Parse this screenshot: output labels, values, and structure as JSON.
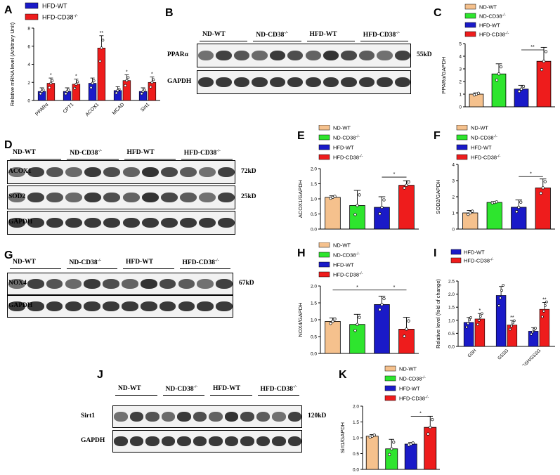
{
  "panels": {
    "A": {
      "label": "A"
    },
    "B": {
      "label": "B"
    },
    "C": {
      "label": "C"
    },
    "D": {
      "label": "D"
    },
    "E": {
      "label": "E"
    },
    "F": {
      "label": "F"
    },
    "G": {
      "label": "G"
    },
    "H": {
      "label": "H"
    },
    "I": {
      "label": "I"
    },
    "J": {
      "label": "J"
    },
    "K": {
      "label": "K"
    }
  },
  "groups4": [
    "ND-WT",
    "ND-CD38",
    "HFD-WT",
    "HFD-CD38"
  ],
  "groups2": [
    "HFD-WT",
    "HFD-CD38"
  ],
  "sup": "-/-",
  "colors": {
    "nd_wt": "#f5c18d",
    "nd_cd38": "#2ee52e",
    "hfd_wt": "#1a1ac8",
    "hfd_cd38": "#ee1c1c",
    "grid": "#000000"
  },
  "blots": {
    "B": {
      "lanes": [
        "ND-WT",
        "ND-CD38",
        "HFD-WT",
        "HFD-CD38"
      ],
      "rows": [
        {
          "name": "PPARα",
          "kd": "55kD"
        },
        {
          "name": "GAPDH",
          "kd": ""
        }
      ]
    },
    "D": {
      "lanes": [
        "ND-WT",
        "ND-CD38",
        "HFD-WT",
        "HFD-CD38"
      ],
      "rows": [
        {
          "name": "ACOX1",
          "kd": "72kD"
        },
        {
          "name": "SOD2",
          "kd": "25kD"
        },
        {
          "name": "GAPDH",
          "kd": ""
        }
      ]
    },
    "G": {
      "lanes": [
        "ND-WT",
        "ND-CD38",
        "HFD-WT",
        "HFD-CD38"
      ],
      "rows": [
        {
          "name": "NOX4",
          "kd": "67kD"
        },
        {
          "name": "GAPDH",
          "kd": ""
        }
      ]
    },
    "J": {
      "lanes": [
        "ND-WT",
        "ND-CD38",
        "HFD-WT",
        "HFD-CD38"
      ],
      "rows": [
        {
          "name": "Sirt1",
          "kd": "120kD"
        },
        {
          "name": "GAPDH",
          "kd": ""
        }
      ]
    }
  },
  "chart_data": [
    {
      "id": "A",
      "type": "bar",
      "ylabel": "Relative mRNA level (Arbitrary Unit)",
      "ylim": [
        0,
        8
      ],
      "yticks": [
        0,
        2,
        4,
        6,
        8
      ],
      "categories": [
        "PPARα",
        "CPT1",
        "ACOX1",
        "MCAD",
        "Sirt1"
      ],
      "series": [
        {
          "name": "HFD-WT",
          "values": [
            1.0,
            1.0,
            1.9,
            1.1,
            1.0
          ]
        },
        {
          "name": "HFD-CD38",
          "values": [
            1.9,
            1.8,
            5.8,
            2.2,
            2.0
          ]
        }
      ],
      "annotations": [
        "*",
        "*",
        "**",
        "*",
        "*"
      ]
    },
    {
      "id": "C",
      "type": "bar",
      "ylabel": "PPARα/GAPDH",
      "ylim": [
        0,
        5
      ],
      "yticks": [
        0,
        1,
        2,
        3,
        4,
        5
      ],
      "categories": [
        "ND-WT",
        "ND-CD38",
        "HFD-WT",
        "HFD-CD38"
      ],
      "values": [
        1.0,
        2.6,
        1.4,
        3.6
      ],
      "errors": [
        0.1,
        0.8,
        0.3,
        1.1
      ],
      "annotations": [
        "**"
      ]
    },
    {
      "id": "E",
      "type": "bar",
      "ylabel": "ACOX1/GAPDH",
      "ylim": [
        0,
        2.0
      ],
      "yticks": [
        0.0,
        0.5,
        1.0,
        1.5,
        2.0
      ],
      "categories": [
        "ND-WT",
        "ND-CD38",
        "HFD-WT",
        "HFD-CD38"
      ],
      "values": [
        1.05,
        0.78,
        0.72,
        1.45
      ],
      "errors": [
        0.05,
        0.5,
        0.35,
        0.15
      ],
      "annotations": [
        "*"
      ]
    },
    {
      "id": "F",
      "type": "bar",
      "ylabel": "SOD2/GAPDH",
      "ylim": [
        0,
        4
      ],
      "yticks": [
        0,
        1,
        2,
        3,
        4
      ],
      "categories": [
        "ND-WT",
        "ND-CD38",
        "HFD-WT",
        "HFD-CD38"
      ],
      "values": [
        1.0,
        1.65,
        1.35,
        2.55
      ],
      "errors": [
        0.15,
        0.05,
        0.45,
        0.55
      ],
      "annotations": [
        "*"
      ]
    },
    {
      "id": "H",
      "type": "bar",
      "ylabel": "NOX4/GAPDH",
      "ylim": [
        0,
        2.0
      ],
      "yticks": [
        0.0,
        0.5,
        1.0,
        1.5,
        2.0
      ],
      "categories": [
        "ND-WT",
        "ND-CD38",
        "HFD-WT",
        "HFD-CD38"
      ],
      "values": [
        0.95,
        0.86,
        1.45,
        0.72
      ],
      "errors": [
        0.1,
        0.3,
        0.25,
        0.35
      ],
      "annotations": [
        "*",
        "*"
      ]
    },
    {
      "id": "I",
      "type": "bar",
      "ylabel": "Relative level (fold of change)",
      "ylim": [
        0,
        2.5
      ],
      "yticks": [
        0.0,
        0.5,
        1.0,
        1.5,
        2.0,
        2.5
      ],
      "categories": [
        "GSH",
        "GSSG",
        "GSH/GSSG"
      ],
      "series": [
        {
          "name": "HFD-WT",
          "values": [
            0.92,
            1.95,
            0.58
          ]
        },
        {
          "name": "HFD-CD38",
          "values": [
            1.05,
            0.82,
            1.42
          ]
        }
      ],
      "annotations": [
        "*",
        "**",
        "**"
      ]
    },
    {
      "id": "K",
      "type": "bar",
      "ylabel": "Sirt1/GAPDH",
      "ylim": [
        0,
        2.0
      ],
      "yticks": [
        0.0,
        0.5,
        1.0,
        1.5,
        2.0
      ],
      "categories": [
        "ND-WT",
        "ND-CD38",
        "HFD-WT",
        "HFD-CD38"
      ],
      "values": [
        1.05,
        0.65,
        0.8,
        1.33
      ],
      "errors": [
        0.05,
        0.3,
        0.05,
        0.35
      ],
      "annotations": [
        "*"
      ]
    }
  ]
}
